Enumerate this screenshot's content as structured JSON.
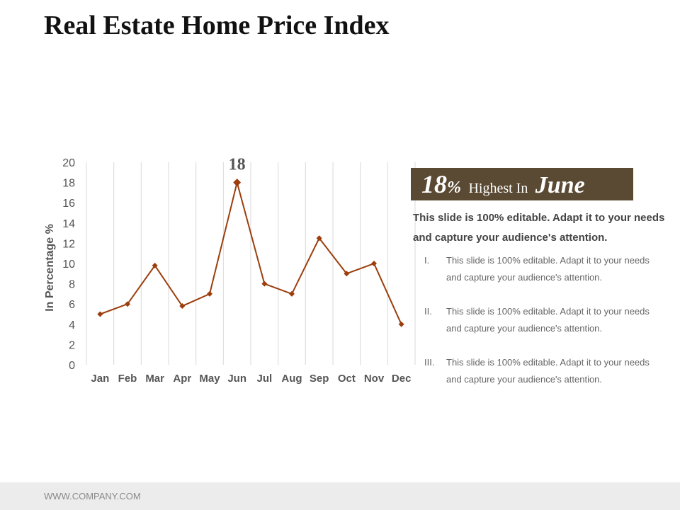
{
  "slide": {
    "title": "Real Estate Home Price Index",
    "footer": "WWW.COMPANY.COM"
  },
  "callout": {
    "percent": "18",
    "percent_sign": "%",
    "middle_text": "Highest In",
    "month": "June"
  },
  "text_block": {
    "lead": "This slide is 100% editable. Adapt it to your needs and capture your audience's attention.",
    "items": [
      {
        "numeral": "I.",
        "text": "This slide is 100% editable. Adapt it to your needs and capture your audience's attention."
      },
      {
        "numeral": "II.",
        "text": "This slide is 100% editable. Adapt it to your needs and capture your audience's attention."
      },
      {
        "numeral": "III.",
        "text": "This slide is 100% editable. Adapt it to your needs and capture your audience's attention."
      }
    ]
  },
  "colors": {
    "line": "#9c3d0c",
    "callout_bg": "#5b4a33",
    "gridline": "#d9d9d9"
  },
  "chart_data": {
    "type": "line",
    "title": "",
    "xlabel": "",
    "ylabel": "In Percentage %",
    "categories": [
      "Jan",
      "Feb",
      "Mar",
      "Apr",
      "May",
      "Jun",
      "Jul",
      "Aug",
      "Sep",
      "Oct",
      "Nov",
      "Dec"
    ],
    "series": [
      {
        "name": "Home Price Index",
        "values": [
          5,
          6,
          9.8,
          5.8,
          7,
          18,
          8,
          7,
          12.5,
          9,
          10,
          4
        ]
      }
    ],
    "ylim": [
      0,
      20
    ],
    "yticks": [
      0,
      2,
      4,
      6,
      8,
      10,
      12,
      14,
      16,
      18,
      20
    ],
    "grid": "vertical",
    "marker": "diamond",
    "data_labels": [
      {
        "category": "Jun",
        "label": "18"
      }
    ]
  }
}
